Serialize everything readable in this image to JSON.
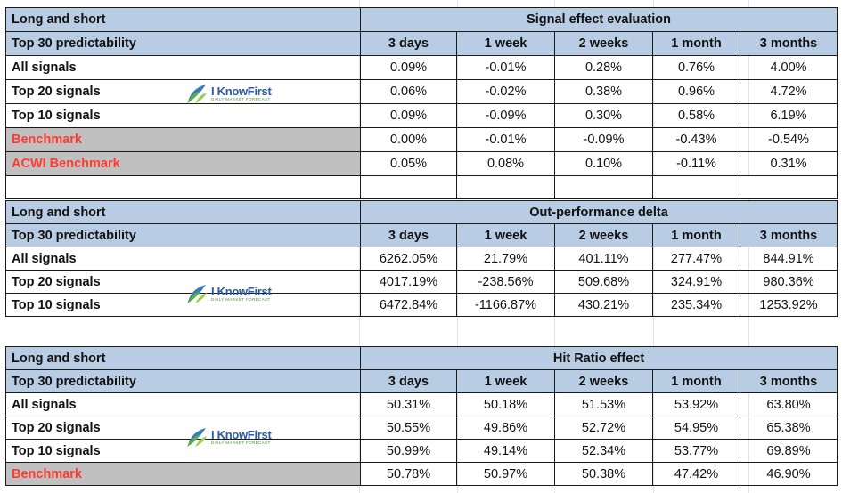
{
  "logo": {
    "name_i": "I",
    "name_rest": "KnowFirst",
    "tagline": "DAILY MARKET FORECAST"
  },
  "col_labels": [
    "3 days",
    "1 week",
    "2 weeks",
    "1 month",
    "3 months"
  ],
  "section1": {
    "group_label": "Long and short",
    "title": "Signal effect evaluation",
    "sub_label": "Top 30 predictability",
    "rows": [
      {
        "label": "All signals",
        "values": [
          "0.09%",
          "-0.01%",
          "0.28%",
          "0.76%",
          "4.00%"
        ]
      },
      {
        "label": "Top 20 signals",
        "values": [
          "0.06%",
          "-0.02%",
          "0.38%",
          "0.96%",
          "4.72%"
        ]
      },
      {
        "label": "Top 10 signals",
        "values": [
          "0.09%",
          "-0.09%",
          "0.30%",
          "0.58%",
          "6.19%"
        ]
      },
      {
        "label": "Benchmark",
        "values": [
          "0.00%",
          "-0.01%",
          "-0.09%",
          "-0.43%",
          "-0.54%"
        ]
      },
      {
        "label": "ACWI Benchmark",
        "values": [
          "0.05%",
          "0.08%",
          "0.10%",
          "-0.11%",
          "0.31%"
        ]
      }
    ]
  },
  "section2": {
    "group_label": "Long and short",
    "title": "Out-performance delta",
    "sub_label": "Top 30 predictability",
    "rows": [
      {
        "label": "All signals",
        "values": [
          "6262.05%",
          "21.79%",
          "401.11%",
          "277.47%",
          "844.91%"
        ]
      },
      {
        "label": "Top 20 signals",
        "values": [
          "4017.19%",
          "-238.56%",
          "509.68%",
          "324.91%",
          "980.36%"
        ]
      },
      {
        "label": "Top 10 signals",
        "values": [
          "6472.84%",
          "-1166.87%",
          "430.21%",
          "235.34%",
          "1253.92%"
        ]
      }
    ]
  },
  "section3": {
    "group_label": "Long and short",
    "title": "Hit Ratio effect",
    "sub_label": "Top 30 predictability",
    "rows": [
      {
        "label": "All signals",
        "values": [
          "50.31%",
          "50.18%",
          "51.53%",
          "53.92%",
          "63.80%"
        ]
      },
      {
        "label": "Top 20 signals",
        "values": [
          "50.55%",
          "49.86%",
          "52.72%",
          "54.95%",
          "65.38%"
        ]
      },
      {
        "label": "Top 10 signals",
        "values": [
          "50.99%",
          "49.14%",
          "52.34%",
          "53.77%",
          "69.89%"
        ]
      },
      {
        "label": "Benchmark",
        "values": [
          "50.78%",
          "50.97%",
          "50.38%",
          "47.42%",
          "46.90%"
        ]
      }
    ]
  }
}
